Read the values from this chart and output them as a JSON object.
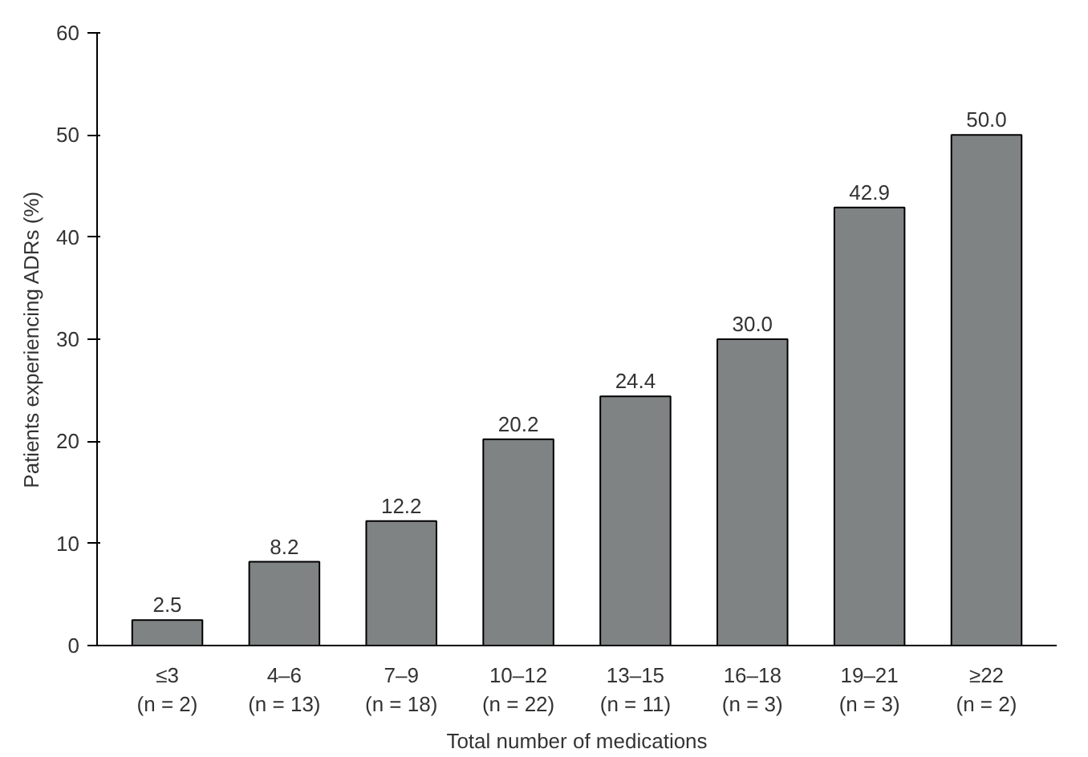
{
  "chart_data": {
    "type": "bar",
    "xlabel": "Total number of medications",
    "ylabel": "Patients experiencing ADRs (%)",
    "categories": [
      "≤3\n(n = 2)",
      "4–6\n(n = 13)",
      "7–9\n(n = 18)",
      "10–12\n(n = 22)",
      "13–15\n(n = 11)",
      "16–18\n(n = 3)",
      "19–21\n(n = 3)",
      "≥22\n(n = 2)"
    ],
    "values": [
      2.5,
      8.2,
      12.2,
      20.2,
      24.4,
      30.0,
      42.9,
      50.0
    ],
    "value_labels": [
      "2.5",
      "8.2",
      "12.2",
      "20.2",
      "24.4",
      "30.0",
      "42.9",
      "50.0"
    ],
    "color": "#7f8383",
    "ylim": [
      0,
      60
    ],
    "yticks": [
      0,
      10,
      20,
      30,
      40,
      50,
      60
    ],
    "grid": false
  }
}
